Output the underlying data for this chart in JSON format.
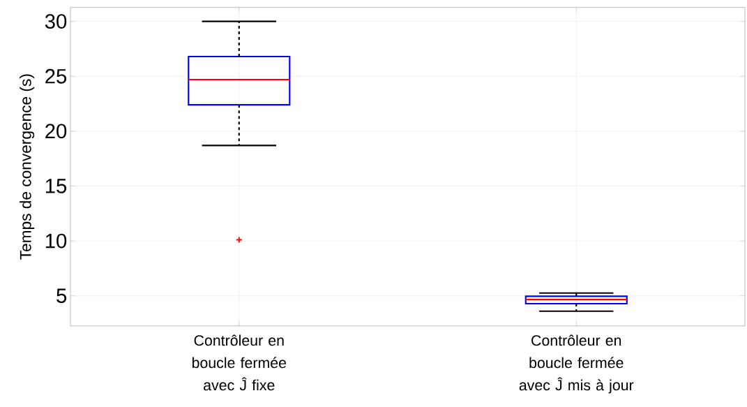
{
  "chart_data": {
    "type": "box",
    "ylabel": "Temps de convergence (s)",
    "categories": [
      "Contrôleur en boucle fermée avec Ĵ fixe",
      "Contrôleur en boucle fermée avec Ĵ mis à jour"
    ],
    "boxes": [
      {
        "low": 18.7,
        "q1": 22.4,
        "median": 24.7,
        "q3": 26.8,
        "high": 30,
        "outliers": [
          10.1
        ]
      },
      {
        "low": 3.6,
        "q1": 4.28,
        "median": 4.66,
        "q3": 4.96,
        "high": 5.25
      }
    ],
    "color": "#0000ff",
    "ylim": [
      2.26,
      31.27
    ],
    "yticks": [
      5,
      10,
      15,
      20,
      25,
      30
    ],
    "grid": true
  }
}
